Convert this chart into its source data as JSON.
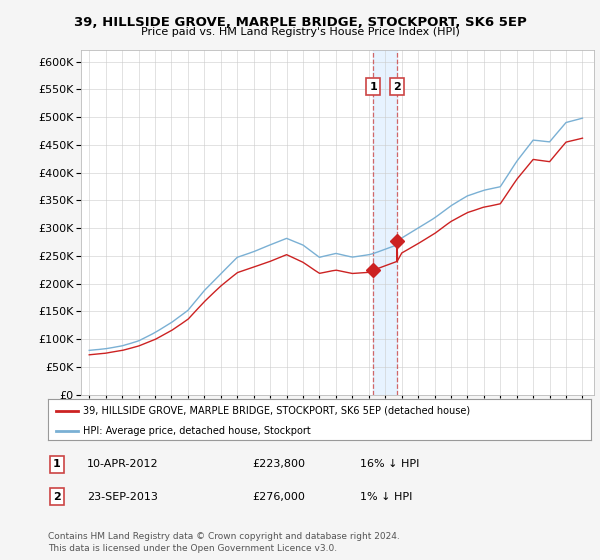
{
  "title": "39, HILLSIDE GROVE, MARPLE BRIDGE, STOCKPORT, SK6 5EP",
  "subtitle": "Price paid vs. HM Land Registry's House Price Index (HPI)",
  "ylim": [
    0,
    620000
  ],
  "ytick_vals": [
    0,
    50000,
    100000,
    150000,
    200000,
    250000,
    300000,
    350000,
    400000,
    450000,
    500000,
    550000,
    600000
  ],
  "sale1": {
    "date_year": 2012.27,
    "price": 223800,
    "label": "1"
  },
  "sale2": {
    "date_year": 2013.73,
    "price": 276000,
    "label": "2"
  },
  "hpi_color": "#7ab0d4",
  "price_color": "#cc2222",
  "vline_color": "#cc4444",
  "vband_color": "#ddeeff",
  "legend_label_price": "39, HILLSIDE GROVE, MARPLE BRIDGE, STOCKPORT, SK6 5EP (detached house)",
  "legend_label_hpi": "HPI: Average price, detached house, Stockport",
  "table_rows": [
    {
      "num": "1",
      "date": "10-APR-2012",
      "price": "£223,800",
      "pct": "16% ↓ HPI"
    },
    {
      "num": "2",
      "date": "23-SEP-2013",
      "price": "£276,000",
      "pct": "1% ↓ HPI"
    }
  ],
  "footer": "Contains HM Land Registry data © Crown copyright and database right 2024.\nThis data is licensed under the Open Government Licence v3.0.",
  "bg_color": "#f5f5f5",
  "plot_bg": "#ffffff"
}
